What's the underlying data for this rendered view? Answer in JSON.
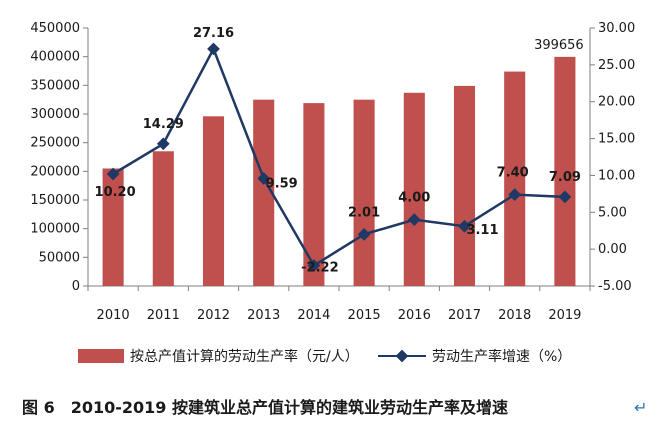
{
  "chart_data": {
    "type": "bar+line",
    "categories": [
      "2010",
      "2011",
      "2012",
      "2013",
      "2014",
      "2015",
      "2016",
      "2017",
      "2018",
      "2019"
    ],
    "series": [
      {
        "name": "按总产值计算的劳动生产率（元/人）",
        "type": "bar",
        "axis": "left",
        "values": [
          205000,
          235000,
          296000,
          325000,
          319000,
          325000,
          337000,
          349000,
          374000,
          399656
        ],
        "data_labels": [
          "",
          "",
          "",
          "",
          "",
          "",
          "",
          "",
          "",
          "399656"
        ]
      },
      {
        "name": "劳动生产率增速（%）",
        "type": "line",
        "axis": "right",
        "values": [
          10.2,
          14.29,
          27.16,
          9.59,
          -2.22,
          2.01,
          4.0,
          3.11,
          7.4,
          7.09
        ],
        "data_labels": [
          "10.20",
          "14.29",
          "27.16",
          "9.59",
          "-2.22",
          "2.01",
          "4.00",
          "3.11",
          "7.40",
          "7.09"
        ]
      }
    ],
    "y_left": {
      "min": 0,
      "max": 450000,
      "step": 50000,
      "ticks": [
        "0",
        "50000",
        "100000",
        "150000",
        "200000",
        "250000",
        "300000",
        "350000",
        "400000",
        "450000"
      ]
    },
    "y_right": {
      "min": -5,
      "max": 30,
      "step": 5,
      "ticks": [
        "-5.00",
        "0.00",
        "5.00",
        "10.00",
        "15.00",
        "20.00",
        "25.00",
        "30.00"
      ]
    },
    "legend_position": "bottom",
    "grid": false,
    "colors": {
      "bar": "#c0504d",
      "line": "#1f3864"
    },
    "caption": "图 6　2010-2019 按建筑业总产值计算的建筑业劳动生产率及增速"
  }
}
